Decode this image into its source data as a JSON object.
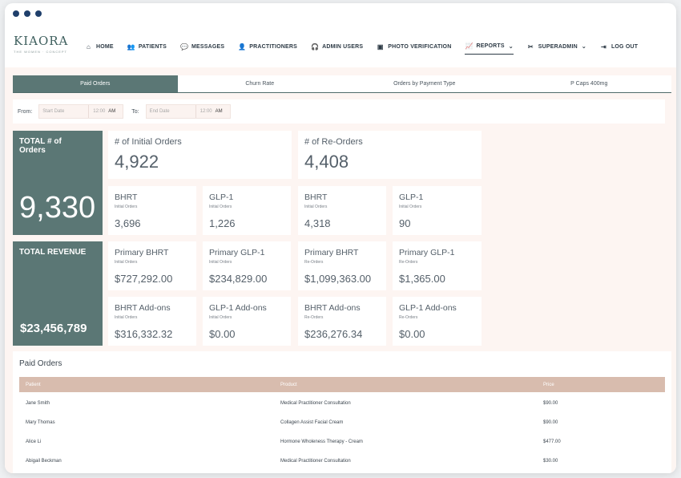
{
  "brand": {
    "name": "KIAORA",
    "tagline": "THE WOMEN · CONCEPT"
  },
  "nav": [
    {
      "label": "HOME",
      "icon": "home-icon",
      "glyph": "⌂"
    },
    {
      "label": "PATIENTS",
      "icon": "users-icon",
      "glyph": "👥"
    },
    {
      "label": "MESSAGES",
      "icon": "chat-icon",
      "glyph": "💬"
    },
    {
      "label": "PRACTITIONERS",
      "icon": "user-icon",
      "glyph": "👤"
    },
    {
      "label": "ADMIN USERS",
      "icon": "headset-icon",
      "glyph": "🎧"
    },
    {
      "label": "PHOTO VERIFICATION",
      "icon": "photo-icon",
      "glyph": "▣"
    },
    {
      "label": "REPORTS",
      "icon": "chart-icon",
      "glyph": "📈",
      "active": true,
      "caret": "⌄"
    },
    {
      "label": "SUPERADMIN",
      "icon": "tools-icon",
      "glyph": "✂",
      "caret": "⌄"
    },
    {
      "label": "LOG OUT",
      "icon": "logout-icon",
      "glyph": "⇥"
    }
  ],
  "tabs": [
    {
      "label": "Paid Orders",
      "active": true
    },
    {
      "label": "Churn Rate"
    },
    {
      "label": "Orders by Payment Type"
    },
    {
      "label": "P Caps 400mg"
    }
  ],
  "filter": {
    "from_label": "From:",
    "to_label": "To:",
    "start_placeholder": "Start Date",
    "end_placeholder": "End Date",
    "time": "12:00",
    "ampm": "AM"
  },
  "totals": {
    "orders_title": "TOTAL # of Orders",
    "orders_value": "9,330",
    "revenue_title": "TOTAL REVENUE",
    "revenue_value": "$23,456,789"
  },
  "cards": {
    "initial_orders": {
      "title": "# of Initial Orders",
      "value": "4,922"
    },
    "re_orders": {
      "title": "# of Re-Orders",
      "value": "4,408"
    },
    "row2": [
      {
        "title": "BHRT",
        "sub": "Initial Orders",
        "value": "3,696"
      },
      {
        "title": "GLP-1",
        "sub": "Initial Orders",
        "value": "1,226"
      },
      {
        "title": "BHRT",
        "sub": "Initial Orders",
        "value": "4,318"
      },
      {
        "title": "GLP-1",
        "sub": "Initial Orders",
        "value": "90"
      }
    ],
    "row3": [
      {
        "title": "Primary BHRT",
        "sub": "Initial Orders",
        "value": "$727,292.00"
      },
      {
        "title": "Primary GLP-1",
        "sub": "Initial Orders",
        "value": "$234,829.00"
      },
      {
        "title": "Primary BHRT",
        "sub": "Re-Orders",
        "value": "$1,099,363.00"
      },
      {
        "title": "Primary GLP-1",
        "sub": "Re-Orders",
        "value": "$1,365.00"
      }
    ],
    "row4": [
      {
        "title": "BHRT Add-ons",
        "sub": "Initial Orders",
        "value": "$316,332.32"
      },
      {
        "title": "GLP-1 Add-ons",
        "sub": "Initial Orders",
        "value": "$0.00"
      },
      {
        "title": "BHRT Add-ons",
        "sub": "Re-Orders",
        "value": "$236,276.34"
      },
      {
        "title": "GLP-1 Add-ons",
        "sub": "Re-Orders",
        "value": "$0.00"
      }
    ]
  },
  "paid_orders": {
    "title": "Paid Orders",
    "columns": [
      "Patient",
      "Product",
      "Price"
    ],
    "rows": [
      [
        "Jane Smith",
        "Medical Practitioner Consultation",
        "$90.00"
      ],
      [
        "Mary Thomas",
        "Collagen Assist Facial Cream",
        "$90.00"
      ],
      [
        "Alice Li",
        "Hormone Wholeness Therapy - Cream",
        "$477.00"
      ],
      [
        "Abigail Beckman",
        "Medical Practitioner Consultation",
        "$30.00"
      ]
    ]
  },
  "colors": {
    "accent": "#5b7775",
    "page_bg": "#fdf5f2",
    "table_header": "#d8bcae",
    "window_dots": "#1f3f6b"
  }
}
